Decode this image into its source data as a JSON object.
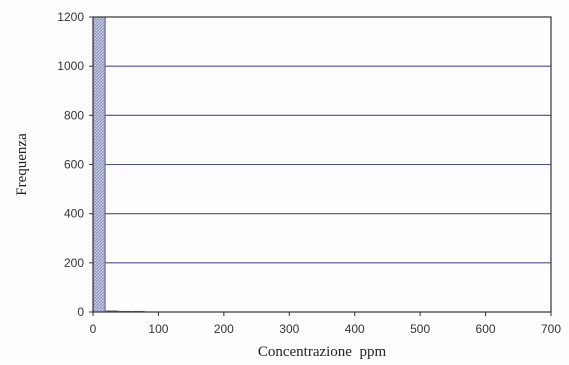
{
  "chart_data": {
    "type": "bar",
    "title": "",
    "xlabel": "Concentrazione  ppm",
    "ylabel": "Frequenza",
    "xlim": [
      0,
      700
    ],
    "ylim": [
      0,
      1200
    ],
    "xticks": [
      0,
      100,
      200,
      300,
      400,
      500,
      600,
      700
    ],
    "yticks": [
      0,
      200,
      400,
      600,
      800,
      1000,
      1200
    ],
    "grid": "horizontal",
    "legend": "none",
    "bins": [
      {
        "x_start": 0,
        "x_end": 20,
        "value": 1200
      },
      {
        "x_start": 20,
        "x_end": 40,
        "value": 5
      },
      {
        "x_start": 40,
        "x_end": 60,
        "value": 1
      },
      {
        "x_start": 60,
        "x_end": 80,
        "value": 1
      }
    ],
    "colors": {
      "bar_fill": "#b8bedc",
      "bar_stroke": "#555a78",
      "grid": "#4a4f8a",
      "frame": "#333333"
    }
  }
}
